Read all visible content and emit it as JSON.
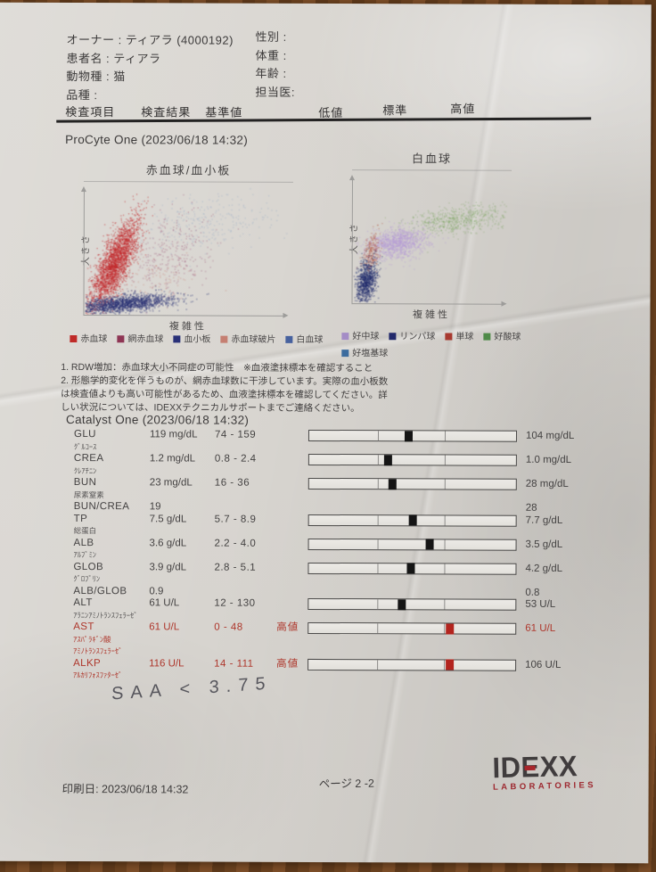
{
  "header": {
    "left_rows": [
      "オーナー : ティアラ (4000192)",
      "患者名 : ティアラ",
      "動物種 : 猫",
      "品種 :"
    ],
    "right_rows": [
      "性別 :",
      "体重 :",
      "年齢 :",
      "担当医:"
    ]
  },
  "table_columns": [
    "検査項目",
    "検査結果",
    "基準値",
    "低値",
    "標準",
    "高値"
  ],
  "procyte": {
    "title": "ProCyte One (2023/06/18 14:32)",
    "notes": [
      "1. RDW増加：赤血球大小不同症の可能性　※血液塗抹標本を確認すること",
      "2. 形態学的変化を伴うものが、網赤血球数に干渉しています。実際の血小板数",
      "は検査値よりも高い可能性があるため、血液塗抹標本を確認してください。詳",
      "しい状況については、IDEXXテクニカルサポートまでご連絡ください。"
    ]
  },
  "chart_data": [
    {
      "type": "scatter",
      "title": "赤血球/血小板",
      "xlabel": "複雑性",
      "ylabel": "大きさ",
      "axis_ticks": "none",
      "legend_position": "below",
      "legend": [
        {
          "name": "赤血球",
          "color": "#bf2a28"
        },
        {
          "name": "網赤血球",
          "color": "#8e3554"
        },
        {
          "name": "血小板",
          "color": "#2a3178"
        },
        {
          "name": "赤血球破片",
          "color": "#c57f72"
        },
        {
          "name": "白血球",
          "color": "#47619e"
        }
      ],
      "clusters": [
        {
          "name": "白血球",
          "color": "#8fa6c6",
          "n": 280,
          "cx": 0.58,
          "cy": 0.72,
          "sx": 0.18,
          "sy": 0.1,
          "rot": 8,
          "op": 0.45
        },
        {
          "name": "網赤血球",
          "color": "#9d5677",
          "n": 300,
          "cx": 0.4,
          "cy": 0.47,
          "sx": 0.1,
          "sy": 0.17,
          "rot": -16,
          "op": 0.5
        },
        {
          "name": "赤血球破片",
          "color": "#c98073",
          "n": 100,
          "cx": 0.34,
          "cy": 0.28,
          "sx": 0.1,
          "sy": 0.1,
          "rot": 0,
          "op": 0.5
        },
        {
          "name": "赤血球",
          "color": "#c1292b",
          "n": 2600,
          "cx": 0.145,
          "cy": 0.4,
          "sx": 0.037,
          "sy": 0.175,
          "rot": -15,
          "op": 0.62
        },
        {
          "name": "血小板",
          "color": "#283173",
          "n": 1700,
          "cx": 0.19,
          "cy": 0.09,
          "sx": 0.12,
          "sy": 0.032,
          "rot": 10,
          "op": 0.6
        }
      ]
    },
    {
      "type": "scatter",
      "title": "白血球",
      "xlabel": "複雑性",
      "ylabel": "大きさ",
      "axis_ticks": "none",
      "legend_position": "below",
      "legend": [
        {
          "name": "好中球",
          "color": "#a48cc6",
          "row": 1
        },
        {
          "name": "リンパ球",
          "color": "#22296b",
          "row": 1
        },
        {
          "name": "単球",
          "color": "#a83a30",
          "row": 1
        },
        {
          "name": "好酸球",
          "color": "#4f8a48",
          "row": 1
        },
        {
          "name": "好塩基球",
          "color": "#3c6c9e",
          "row": 2
        }
      ],
      "clusters": [
        {
          "name": "好酸球",
          "color": "#7aa35f",
          "n": 650,
          "cx": 0.67,
          "cy": 0.645,
          "sx": 0.16,
          "sy": 0.05,
          "rot": 10,
          "op": 0.45
        },
        {
          "name": "好中球",
          "color": "#b49bd6",
          "n": 1200,
          "cx": 0.28,
          "cy": 0.465,
          "sx": 0.1,
          "sy": 0.055,
          "rot": 14,
          "op": 0.55
        },
        {
          "name": "単球",
          "color": "#b55c48",
          "n": 260,
          "cx": 0.115,
          "cy": 0.4,
          "sx": 0.026,
          "sy": 0.075,
          "rot": -8,
          "op": 0.55
        },
        {
          "name": "好塩基球",
          "color": "#3f6d9e",
          "n": 45,
          "cx": 0.1,
          "cy": 0.26,
          "sx": 0.03,
          "sy": 0.04,
          "rot": 0,
          "op": 0.5
        },
        {
          "name": "リンパ球",
          "color": "#1f2a6b",
          "n": 850,
          "cx": 0.085,
          "cy": 0.17,
          "sx": 0.032,
          "sy": 0.085,
          "rot": -8,
          "op": 0.62
        }
      ]
    }
  ],
  "catalyst": {
    "title": "Catalyst One (2023/06/18 14:32)",
    "rows": [
      {
        "code": "GLU",
        "sub": [
          "ｸﾞﾙｺｰｽ"
        ],
        "result": "119 mg/dL",
        "range": "74 - 159",
        "flag": "",
        "bar": true,
        "marker": 0.48,
        "alert": false,
        "right": "104 mg/dL",
        "right_red": false
      },
      {
        "code": "CREA",
        "sub": [
          "ｸﾚｱﾁﾆﾝ"
        ],
        "result": "1.2 mg/dL",
        "range": "0.8 - 2.4",
        "flag": "",
        "bar": true,
        "marker": 0.38,
        "alert": false,
        "right": "1.0 mg/dL",
        "right_red": false
      },
      {
        "code": "BUN",
        "sub": [
          "尿素窒素"
        ],
        "result": "23 mg/dL",
        "range": "16 - 36",
        "flag": "",
        "bar": true,
        "marker": 0.4,
        "alert": false,
        "right": "28 mg/dL",
        "right_red": false
      },
      {
        "code": "BUN/CREA",
        "sub": [],
        "result": "19",
        "range": "",
        "flag": "",
        "bar": false,
        "marker": 0,
        "alert": false,
        "right": "28",
        "right_red": false
      },
      {
        "code": "TP",
        "sub": [
          "総蛋白"
        ],
        "result": "7.5 g/dL",
        "range": "5.7 - 8.9",
        "flag": "",
        "bar": true,
        "marker": 0.5,
        "alert": false,
        "right": "7.7 g/dL",
        "right_red": false
      },
      {
        "code": "ALB",
        "sub": [
          "ｱﾙﾌﾞﾐﾝ"
        ],
        "result": "3.6 g/dL",
        "range": "2.2 - 4.0",
        "flag": "",
        "bar": true,
        "marker": 0.58,
        "alert": false,
        "right": "3.5 g/dL",
        "right_red": false
      },
      {
        "code": "GLOB",
        "sub": [
          "ｸﾞﾛﾌﾞﾘﾝ"
        ],
        "result": "3.9 g/dL",
        "range": "2.8 - 5.1",
        "flag": "",
        "bar": true,
        "marker": 0.49,
        "alert": false,
        "right": "4.2 g/dL",
        "right_red": false
      },
      {
        "code": "ALB/GLOB",
        "sub": [],
        "result": "0.9",
        "range": "",
        "flag": "",
        "bar": false,
        "marker": 0,
        "alert": false,
        "right": "0.8",
        "right_red": false
      },
      {
        "code": "ALT",
        "sub": [
          "ｱﾗﾆﾝｱﾐﾉﾄﾗﾝｽﾌｪﾗｰｾﾞ"
        ],
        "result": "61 U/L",
        "range": "12 - 130",
        "flag": "",
        "bar": true,
        "marker": 0.45,
        "alert": false,
        "right": "53 U/L",
        "right_red": false
      },
      {
        "code": "AST",
        "sub": [
          "ｱｽﾊﾟﾗｷﾞﾝ酸",
          "ｱﾐﾉﾄﾗﾝｽﾌｪﾗｰｾﾞ"
        ],
        "result": "61 U/L",
        "range": "0 - 48",
        "flag": "高値",
        "bar": true,
        "marker": 0.68,
        "alert": true,
        "right": "61 U/L",
        "right_red": true
      },
      {
        "code": "ALKP",
        "sub": [
          "ｱﾙｶﾘﾌｫｽﾌｧﾀｰｾﾞ"
        ],
        "result": "116 U/L",
        "range": "14 - 111",
        "flag": "高値",
        "bar": true,
        "marker": 0.68,
        "alert": true,
        "right": "106 U/L",
        "right_red": false
      }
    ],
    "bar_dividers": [
      0.33,
      0.655
    ],
    "alert_color": "#ae372c",
    "marker_color": "#151515",
    "marker_alert_color": "#b3241e"
  },
  "handwriting": {
    "text": "SAA < 3.75"
  },
  "footer": {
    "print_date": "印刷日: 2023/06/18 14:32",
    "page": "ページ 2 -2",
    "logo_text": "IDEXX",
    "logo_sub": "LABORATORIES"
  }
}
